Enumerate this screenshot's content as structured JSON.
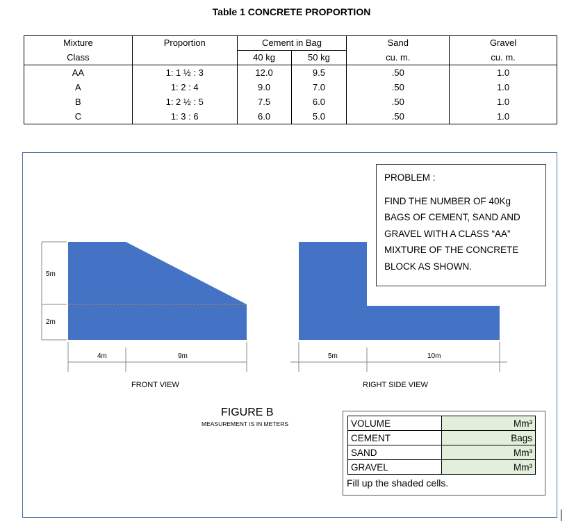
{
  "table": {
    "title": "Table 1 CONCRETE PROPORTION",
    "headers": {
      "mixture": "Mixture",
      "class": "Class",
      "proportion": "Proportion",
      "cement": "Cement in Bag",
      "kg40": "40 kg",
      "kg50": "50 kg",
      "sand": "Sand",
      "sand_unit": "cu. m.",
      "gravel": "Gravel",
      "gravel_unit": "cu. m."
    },
    "rows": [
      {
        "cls": "AA",
        "prop": "1: 1 ½ : 3",
        "c40": "12.0",
        "c50": "9.5",
        "sand": ".50",
        "gravel": "1.0"
      },
      {
        "cls": "A",
        "prop": "1: 2 : 4",
        "c40": "9.0",
        "c50": "7.0",
        "sand": ".50",
        "gravel": "1.0"
      },
      {
        "cls": "B",
        "prop": "1: 2 ½ : 5",
        "c40": "7.5",
        "c50": "6.0",
        "sand": ".50",
        "gravel": "1.0"
      },
      {
        "cls": "C",
        "prop": "1: 3 : 6",
        "c40": "6.0",
        "c50": "5.0",
        "sand": ".50",
        "gravel": "1.0"
      }
    ]
  },
  "problem": {
    "title": "PROBLEM :",
    "lines": [
      "FIND THE NUMBER OF 40Kg",
      "BAGS OF CEMENT, SAND AND",
      "GRAVEL WITH A CLASS “AA”",
      "MIXTURE OF THE CONCRETE",
      "BLOCK AS SHOWN."
    ]
  },
  "figure": {
    "dims": {
      "v5m": "5m",
      "v2m": "2m",
      "h4m": "4m",
      "h9m": "9m",
      "h5m": "5m",
      "h10m": "10m"
    },
    "front_label": "FRONT VIEW",
    "side_label": "RIGHT SIDE VIEW",
    "title": "FIGURE B",
    "subtitle": "MEASUREMENT IS IN METERS",
    "fill_color": "#4472c4"
  },
  "answer": {
    "rows": [
      {
        "label": "VOLUME",
        "unit": "Mm³"
      },
      {
        "label": "CEMENT",
        "unit": "Bags"
      },
      {
        "label": "SAND",
        "unit": "Mm³"
      },
      {
        "label": "GRAVEL",
        "unit": "Mm³"
      }
    ],
    "note": "Fill up the shaded cells."
  }
}
